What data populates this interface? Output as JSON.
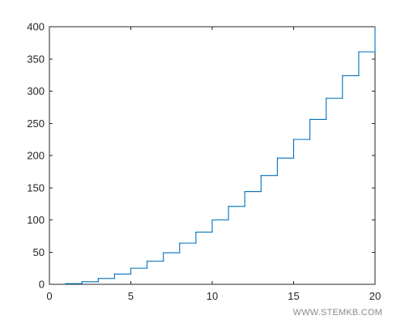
{
  "chart_data": {
    "type": "line",
    "style": "stairs",
    "x": [
      1,
      2,
      3,
      4,
      5,
      6,
      7,
      8,
      9,
      10,
      11,
      12,
      13,
      14,
      15,
      16,
      17,
      18,
      19,
      20
    ],
    "y": [
      1,
      4,
      9,
      16,
      25,
      36,
      49,
      64,
      81,
      100,
      121,
      144,
      169,
      196,
      225,
      256,
      289,
      324,
      361,
      400
    ],
    "xlim": [
      0,
      20
    ],
    "ylim": [
      0,
      400
    ],
    "xticks": [
      0,
      5,
      10,
      15,
      20
    ],
    "yticks": [
      0,
      50,
      100,
      150,
      200,
      250,
      300,
      350,
      400
    ],
    "title": "",
    "xlabel": "",
    "ylabel": "",
    "grid": false,
    "line_color": "#0072BD",
    "axes_color": "#262626"
  },
  "watermark": "WWW.STEMKB.COM"
}
